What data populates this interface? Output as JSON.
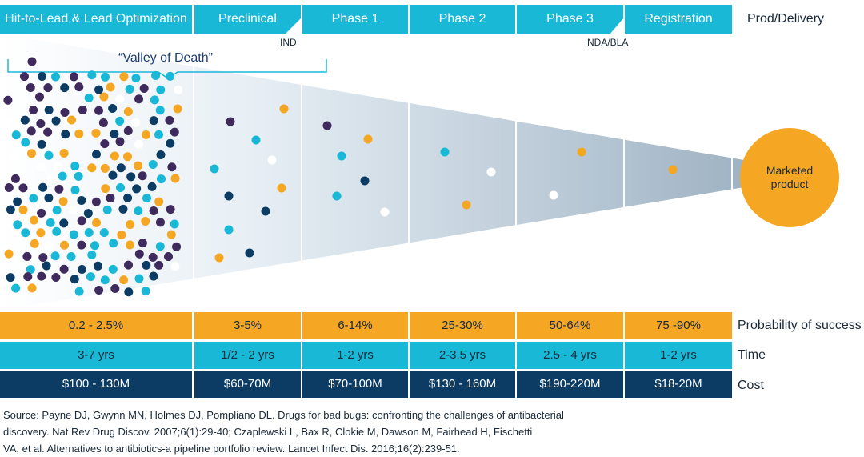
{
  "colors": {
    "teal": "#18b8d6",
    "orange": "#f5a623",
    "navy": "#0c3c63",
    "purple": "#3e2a5c",
    "white": "#ffffff"
  },
  "header": {
    "stages": [
      "Hit-to-Lead & Lead Optimization",
      "Preclinical",
      "Phase 1",
      "Phase 2",
      "Phase 3",
      "Registration"
    ],
    "prod_label": "Prod/Delivery"
  },
  "milestones": {
    "ind": "IND",
    "nda": "NDA/BLA"
  },
  "valley_label": "“Valley of Death”",
  "marketed_product": {
    "line1": "Marketed",
    "line2": "product"
  },
  "rows": {
    "probability": {
      "label": "Probability of success",
      "values": [
        "0.2 - 2.5%",
        "3-5%",
        "6-14%",
        "25-30%",
        "50-64%",
        "75 -90%"
      ]
    },
    "time": {
      "label": "Time",
      "values": [
        "3-7 yrs",
        "1/2 - 2 yrs",
        "1-2 yrs",
        "2-3.5 yrs",
        "2.5 - 4 yrs",
        "1-2 yrs"
      ]
    },
    "cost": {
      "label": "Cost",
      "values": [
        "$100 - 130M",
        "$60-70M",
        "$70-100M",
        "$130 - 160M",
        "$190-220M",
        "$18-20M"
      ]
    }
  },
  "source": {
    "line1": "Source: Payne DJ, Gwynn MN, Holmes DJ, Pompliano DL. Drugs for bad bugs: confronting the challenges of antibacterial",
    "line2": "discovery. Nat Rev Drug Discov. 2007;6(1):29-40; Czaplewski L, Bax R, Clokie M, Dawson M, Fairhead H, Fischetti",
    "line3": "VA, et al. Alternatives to antibiotics-a pipeline portfolio review. Lancet Infect Dis. 2016;16(2):239-51."
  }
}
